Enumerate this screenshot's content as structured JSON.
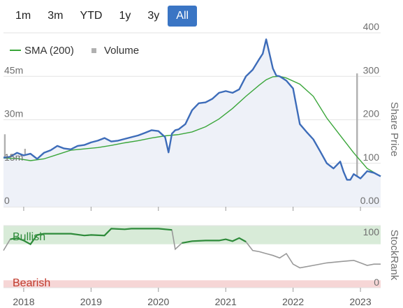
{
  "range_buttons": [
    {
      "label": "1m",
      "active": false
    },
    {
      "label": "3m",
      "active": false
    },
    {
      "label": "YTD",
      "active": false
    },
    {
      "label": "1y",
      "active": false
    },
    {
      "label": "3y",
      "active": false
    },
    {
      "label": "All",
      "active": true
    }
  ],
  "colors": {
    "price": "#3d6cb9",
    "sma": "#3aa63a",
    "volume": "#b0b0b0",
    "rank": "#999999",
    "rank_bullish": "#2e8b3a",
    "bullish_band": "#d8ebd8",
    "bearish_band": "#f6d6d6",
    "price_fill": "#eef1f8",
    "active_button": "#3a75c4"
  },
  "chart_data": {
    "type": "line",
    "legend": {
      "placement": "top-left",
      "entries": [
        {
          "label": "SMA (200)",
          "marker": "line"
        },
        {
          "label": "Volume",
          "marker": "square"
        }
      ]
    },
    "x_axis": {
      "ticks": [
        "2018",
        "2019",
        "2020",
        "2021",
        "2022",
        "2023"
      ],
      "range": [
        2017.7,
        2023.3
      ]
    },
    "price_axis": {
      "label": "Share Price",
      "ticks": [
        "400",
        "300",
        "200",
        "100",
        "0.00"
      ],
      "tick_values": [
        400,
        300,
        200,
        100,
        0
      ],
      "range": [
        0,
        400
      ],
      "position": "right"
    },
    "volume_axis": {
      "ticks": [
        "45m",
        "30m",
        "15m",
        "0"
      ],
      "tick_values": [
        45,
        30,
        15,
        0
      ],
      "range": [
        0,
        60
      ],
      "unit": "m",
      "position": "left"
    },
    "stockrank_axis": {
      "label": "StockRank",
      "ticks": [
        "100",
        "0"
      ],
      "tick_values": [
        100,
        0
      ],
      "range": [
        0,
        100
      ],
      "bands": [
        {
          "label": "Bullish",
          "from": 70,
          "to": 100
        },
        {
          "label": "Bearish",
          "from": 0,
          "to": 12
        }
      ]
    },
    "series": [
      {
        "name": "Price",
        "x": [
          2017.7,
          2017.8,
          2017.9,
          2018.0,
          2018.1,
          2018.2,
          2018.3,
          2018.4,
          2018.5,
          2018.6,
          2018.7,
          2018.8,
          2018.9,
          2019.0,
          2019.1,
          2019.2,
          2019.3,
          2019.4,
          2019.5,
          2019.6,
          2019.7,
          2019.8,
          2019.9,
          2020.0,
          2020.1,
          2020.15,
          2020.2,
          2020.25,
          2020.3,
          2020.4,
          2020.5,
          2020.6,
          2020.7,
          2020.8,
          2020.9,
          2021.0,
          2021.1,
          2021.2,
          2021.3,
          2021.4,
          2021.5,
          2021.55,
          2021.6,
          2021.7,
          2021.75,
          2021.8,
          2021.9,
          2022.0,
          2022.1,
          2022.2,
          2022.3,
          2022.4,
          2022.5,
          2022.6,
          2022.7,
          2022.75,
          2022.8,
          2022.85,
          2022.9,
          2023.0,
          2023.1,
          2023.2,
          2023.3
        ],
        "values": [
          113,
          115,
          124,
          118,
          122,
          110,
          124,
          130,
          140,
          134,
          132,
          140,
          142,
          148,
          152,
          158,
          150,
          152,
          156,
          160,
          164,
          170,
          176,
          174,
          160,
          125,
          168,
          176,
          178,
          190,
          222,
          238,
          240,
          248,
          262,
          266,
          262,
          270,
          300,
          315,
          340,
          352,
          385,
          318,
          302,
          300,
          290,
          272,
          190,
          172,
          155,
          128,
          100,
          88,
          104,
          80,
          62,
          62,
          75,
          65,
          82,
          78,
          70
        ]
      },
      {
        "name": "SMA (200)",
        "x": [
          2017.7,
          2017.9,
          2018.1,
          2018.3,
          2018.5,
          2018.7,
          2018.9,
          2019.1,
          2019.3,
          2019.5,
          2019.7,
          2019.9,
          2020.1,
          2020.3,
          2020.5,
          2020.7,
          2020.9,
          2021.1,
          2021.3,
          2021.5,
          2021.6,
          2021.7,
          2021.8,
          2021.9,
          2022.1,
          2022.3,
          2022.5,
          2022.7,
          2022.9,
          2023.1,
          2023.3
        ],
        "values": [
          112,
          111,
          106,
          110,
          120,
          130,
          133,
          136,
          141,
          147,
          152,
          158,
          163,
          166,
          172,
          184,
          202,
          226,
          254,
          280,
          292,
          299,
          300,
          296,
          282,
          254,
          204,
          164,
          124,
          88,
          70
        ]
      },
      {
        "name": "Volume",
        "x": [
          2017.72,
          2017.95,
          2018.02,
          2018.25,
          2018.5,
          2018.8,
          2019.0,
          2019.3,
          2019.6,
          2019.9,
          2020.2,
          2020.5,
          2020.8,
          2021.0,
          2021.2,
          2021.4,
          2021.6,
          2021.8,
          2022.0,
          2022.2,
          2022.5,
          2022.8,
          2022.95,
          2023.0,
          2023.1,
          2023.2
        ],
        "values": [
          25,
          3,
          20,
          4,
          3,
          4,
          3,
          3,
          3,
          3,
          5,
          4,
          3,
          3,
          4,
          4,
          6,
          5,
          4,
          5,
          4,
          6,
          46,
          10,
          8,
          6
        ]
      },
      {
        "name": "StockRank",
        "x": [
          2017.7,
          2017.8,
          2017.9,
          2018.0,
          2018.1,
          2018.2,
          2018.3,
          2018.5,
          2018.7,
          2018.9,
          2019.0,
          2019.2,
          2019.3,
          2019.5,
          2019.6,
          2019.8,
          2020.0,
          2020.2,
          2020.25,
          2020.35,
          2020.5,
          2020.7,
          2020.9,
          2021.0,
          2021.1,
          2021.2,
          2021.3,
          2021.4,
          2021.5,
          2021.6,
          2021.7,
          2021.8,
          2021.9,
          2022.0,
          2022.1,
          2022.3,
          2022.5,
          2022.7,
          2022.9,
          2023.0,
          2023.1,
          2023.2,
          2023.3
        ],
        "values": [
          60,
          78,
          80,
          76,
          70,
          85,
          87,
          87,
          87,
          84,
          85,
          84,
          95,
          94,
          95,
          95,
          95,
          93,
          62,
          72,
          75,
          76,
          76,
          78,
          75,
          80,
          74,
          60,
          58,
          55,
          52,
          48,
          55,
          38,
          32,
          36,
          40,
          42,
          44,
          40,
          36,
          38,
          38
        ]
      }
    ]
  }
}
